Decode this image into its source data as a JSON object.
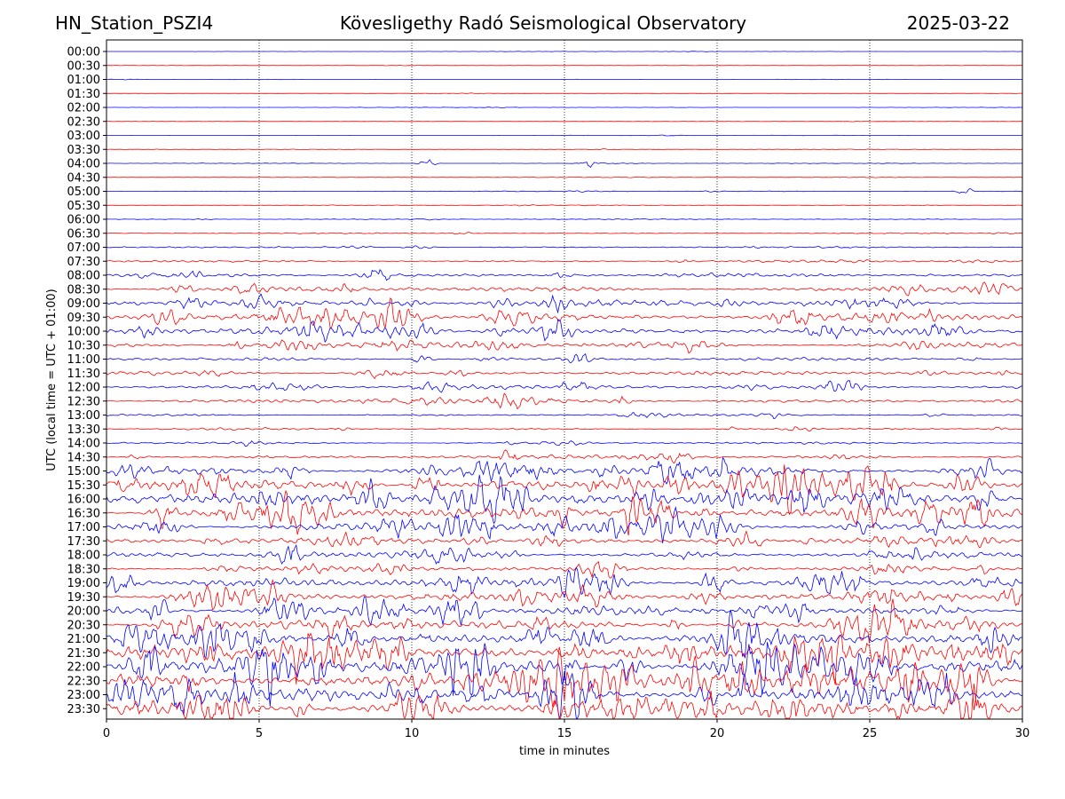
{
  "header": {
    "station": "HN_Station_PSZI4",
    "observatory": "Kövesligethy Radó Seismological Observatory",
    "date": "2025-03-22"
  },
  "chart_data": {
    "type": "line",
    "title": "Kövesligethy Radó Seismological Observatory",
    "xlabel": "time in minutes",
    "ylabel": "UTC (local time = UTC + 01:00)",
    "xlim": [
      0,
      30
    ],
    "xticks": [
      0,
      5,
      10,
      15,
      20,
      25,
      30
    ],
    "grid": "vertical-dotted",
    "colors": {
      "trace_even": "#0000ff",
      "trace_odd": "#ff0000",
      "grid": "#000000"
    },
    "rows": [
      "00:00",
      "00:30",
      "01:00",
      "01:30",
      "02:00",
      "02:30",
      "03:00",
      "03:30",
      "04:00",
      "04:30",
      "05:00",
      "05:30",
      "06:00",
      "06:30",
      "07:00",
      "07:30",
      "08:00",
      "08:30",
      "09:00",
      "09:30",
      "10:00",
      "10:30",
      "11:00",
      "11:30",
      "12:00",
      "12:30",
      "13:00",
      "13:30",
      "14:00",
      "14:30",
      "15:00",
      "15:30",
      "16:00",
      "16:30",
      "17:00",
      "17:30",
      "18:00",
      "18:30",
      "19:00",
      "19:30",
      "20:00",
      "20:30",
      "21:00",
      "21:30",
      "22:00",
      "22:30",
      "23:00",
      "23:30"
    ],
    "row_activity": [
      0.3,
      0.3,
      0.35,
      0.3,
      0.35,
      0.35,
      0.4,
      0.5,
      0.5,
      0.55,
      0.7,
      0.7,
      0.9,
      1.0,
      1.5,
      2.0,
      3.5,
      4.5,
      6.0,
      7.0,
      6.5,
      5.5,
      3.0,
      3.5,
      4.0,
      4.0,
      2.0,
      2.0,
      2.0,
      3.5,
      8.0,
      10.0,
      11.0,
      10.5,
      8.5,
      6.0,
      5.0,
      5.0,
      8.0,
      8.5,
      8.0,
      8.5,
      10.0,
      12.0,
      13.0,
      13.0,
      12.0,
      12.5
    ],
    "events": [
      {
        "row": "05:00",
        "minute": 28.1,
        "note": "burst"
      },
      {
        "row": "04:00",
        "minute": 10.5
      },
      {
        "row": "04:00",
        "minute": 15.8
      }
    ]
  }
}
